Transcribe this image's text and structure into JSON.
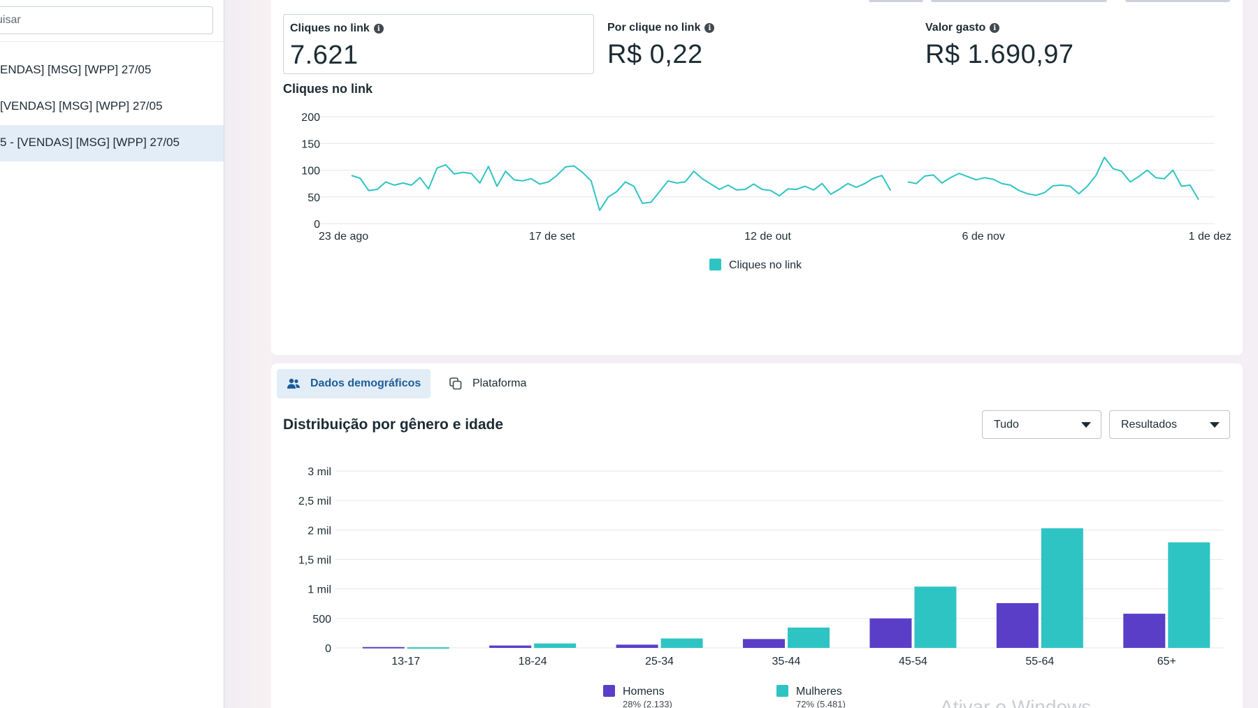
{
  "sidebar": {
    "search_placeholder": "uisar",
    "items": [
      {
        "label": "ENDAS] [MSG] [WPP] 27/05"
      },
      {
        "label": "[VENDAS] [MSG] [WPP] 27/05"
      },
      {
        "label": "5 - [VENDAS] [MSG] [WPP] 27/05"
      }
    ]
  },
  "metrics": [
    {
      "label": "Cliques no link",
      "value": "7.621"
    },
    {
      "label": "Por clique no link",
      "value": "R$ 0,22"
    },
    {
      "label": "Valor gasto",
      "value": "R$ 1.690,97"
    }
  ],
  "icons": {
    "info": "info-icon",
    "people": "people-icon",
    "copy": "copy-icon",
    "caret": "chevron-down-icon"
  },
  "colors": {
    "teal": "#2ec4c4",
    "purple": "#5b3ec8",
    "selected_bg": "#e3edf7",
    "active_tab_text": "#1c5d99"
  },
  "line_chart": {
    "title": "Cliques no link",
    "legend": "Cliques no link"
  },
  "tabs": [
    {
      "label": "Dados demográficos",
      "active": true
    },
    {
      "label": "Plataforma",
      "active": false
    }
  ],
  "demographics": {
    "title": "Distribuição por gênero e idade",
    "filter1": "Tudo",
    "filter2": "Resultados",
    "legend": [
      {
        "name": "Homens",
        "sub": "28% (2.133)"
      },
      {
        "name": "Mulheres",
        "sub": "72% (5.481)"
      }
    ]
  },
  "watermark": "Ativar o Windows",
  "chart_data": [
    {
      "type": "line",
      "title": "Cliques no link",
      "x_ticks": [
        "23 de ago",
        "17 de set",
        "12 de out",
        "6 de nov",
        "1 de dez"
      ],
      "y_ticks": [
        "200",
        "150",
        "100",
        "50",
        "0"
      ],
      "ylim": [
        0,
        200
      ],
      "grid": true,
      "legend_position": "bottom",
      "series": [
        {
          "name": "Cliques no link",
          "segments": [
            [
              90,
              85,
              62,
              64,
              78,
              72,
              76,
              72,
              86,
              65,
              104,
              110,
              93,
              96,
              94,
              76,
              107,
              70,
              98,
              82,
              80,
              84,
              74,
              78,
              90,
              106,
              108,
              96,
              80,
              25,
              50,
              60,
              78,
              70,
              38,
              40,
              60,
              80,
              76,
              78,
              98,
              84,
              74,
              64,
              72,
              63,
              64,
              74,
              64,
              62,
              52,
              65,
              64,
              70,
              63,
              75,
              55,
              64,
              75,
              68,
              75,
              85,
              90,
              62
            ],
            [
              78,
              75,
              89,
              91,
              76,
              86,
              94,
              88,
              82,
              86,
              83,
              75,
              72,
              62,
              56,
              53,
              58,
              71,
              72,
              70,
              56,
              70,
              90,
              124,
              103,
              98,
              78,
              88,
              100,
              86,
              84,
              100,
              70,
              72,
              45
            ]
          ]
        }
      ]
    },
    {
      "type": "bar",
      "title": "Distribuição por gênero e idade",
      "categories": [
        "13-17",
        "18-24",
        "25-34",
        "35-44",
        "45-54",
        "55-64",
        "65+"
      ],
      "y_ticks": [
        "3 mil",
        "2,5 mil",
        "2 mil",
        "1,5 mil",
        "1 mil",
        "500",
        "0"
      ],
      "ylim": [
        0,
        3000
      ],
      "grid": true,
      "legend_position": "bottom",
      "series": [
        {
          "name": "Homens",
          "values": [
            15,
            40,
            55,
            150,
            500,
            760,
            580
          ]
        },
        {
          "name": "Mulheres",
          "values": [
            10,
            75,
            160,
            345,
            1040,
            2030,
            1790
          ]
        }
      ]
    }
  ]
}
